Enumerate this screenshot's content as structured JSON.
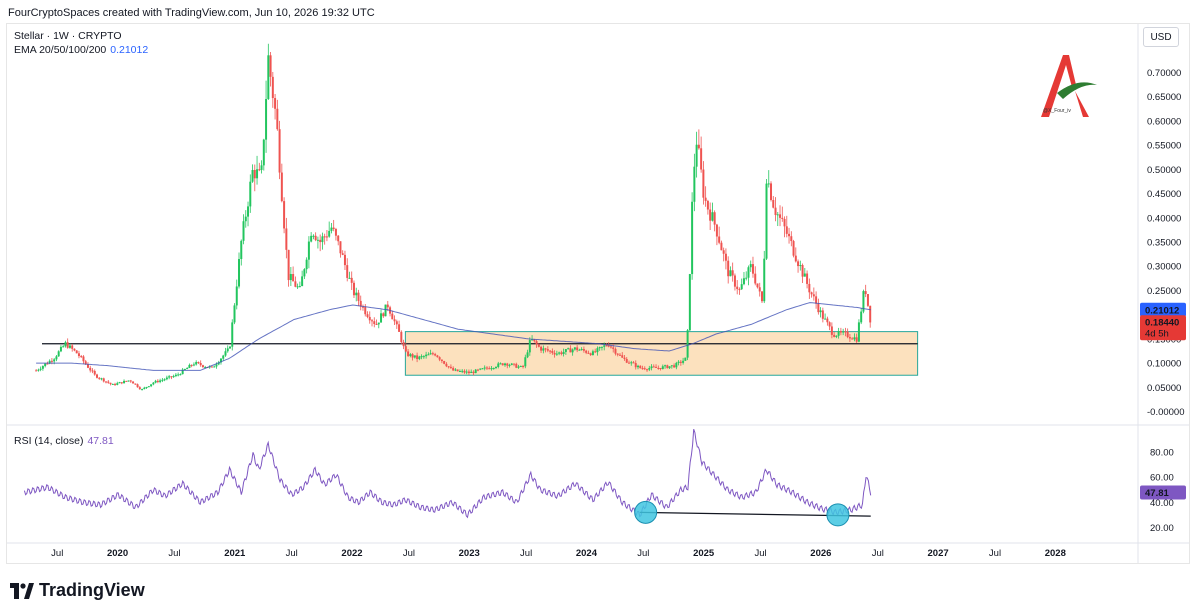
{
  "header": {
    "text": "FourCryptoSpaces created with TradingView.com, Jun 10, 2026 19:32 UTC"
  },
  "legend": {
    "title": "Stellar · 1W · CRYPTO",
    "ema_label": "EMA 20/50/100/200",
    "ema_value": "0.21012",
    "rsi_label": "RSI (14, close)",
    "rsi_value": "47.81"
  },
  "currency_button": "USD",
  "watermark": {
    "handle": "@X_Four_iv"
  },
  "footer": {
    "brand": "TradingView"
  },
  "price_badges": {
    "ema": "0.21012",
    "last": "0.18440",
    "countdown": "4d 5h",
    "rsi": "47.81"
  },
  "colors": {
    "up": "#26a69a",
    "up_green": "#22c55e",
    "down": "#ef5350",
    "ema": "#3f51b5",
    "rsi": "#7e57c2",
    "zone_fill": "#fbd7a8",
    "zone_border": "#26a69a",
    "circle": "#3fc5e0",
    "ema_badge": "#2962ff",
    "last_badge": "#e53935"
  },
  "chart_data": [
    {
      "type": "candlestick",
      "title": "Stellar · 1W · CRYPTO",
      "y_unit": "USD",
      "y_ticks": [
        "0.70000",
        "0.65000",
        "0.60000",
        "0.55000",
        "0.50000",
        "0.45000",
        "0.40000",
        "0.35000",
        "0.30000",
        "0.25000",
        "0.20000",
        "0.15000",
        "0.10000",
        "0.05000",
        "-0.00000"
      ],
      "ylim": [
        -0.005,
        0.74
      ],
      "x_ticks": [
        "Jul",
        "2020",
        "Jul",
        "2021",
        "Jul",
        "2022",
        "Jul",
        "2023",
        "Jul",
        "2024",
        "Jul",
        "2025",
        "Jul",
        "2026",
        "Jul",
        "2027",
        "Jul",
        "2028"
      ],
      "x_tick_bold": [
        false,
        true,
        false,
        true,
        false,
        true,
        false,
        true,
        false,
        true,
        false,
        true,
        false,
        true,
        false,
        true,
        false,
        true
      ],
      "price_path": [
        [
          2019.3,
          0.085
        ],
        [
          2019.45,
          0.11
        ],
        [
          2019.55,
          0.14
        ],
        [
          2019.65,
          0.12
        ],
        [
          2019.8,
          0.075
        ],
        [
          2019.95,
          0.055
        ],
        [
          2020.1,
          0.065
        ],
        [
          2020.2,
          0.045
        ],
        [
          2020.3,
          0.06
        ],
        [
          2020.5,
          0.075
        ],
        [
          2020.65,
          0.1
        ],
        [
          2020.8,
          0.09
        ],
        [
          2020.95,
          0.13
        ],
        [
          2021.05,
          0.35
        ],
        [
          2021.15,
          0.5
        ],
        [
          2021.22,
          0.48
        ],
        [
          2021.28,
          0.73
        ],
        [
          2021.35,
          0.6
        ],
        [
          2021.45,
          0.28
        ],
        [
          2021.55,
          0.25
        ],
        [
          2021.65,
          0.38
        ],
        [
          2021.72,
          0.35
        ],
        [
          2021.82,
          0.38
        ],
        [
          2021.9,
          0.33
        ],
        [
          2022.0,
          0.25
        ],
        [
          2022.1,
          0.21
        ],
        [
          2022.2,
          0.18
        ],
        [
          2022.3,
          0.22
        ],
        [
          2022.4,
          0.16
        ],
        [
          2022.45,
          0.12
        ],
        [
          2022.55,
          0.11
        ],
        [
          2022.7,
          0.12
        ],
        [
          2022.85,
          0.085
        ],
        [
          2023.0,
          0.08
        ],
        [
          2023.15,
          0.09
        ],
        [
          2023.3,
          0.1
        ],
        [
          2023.45,
          0.09
        ],
        [
          2023.52,
          0.15
        ],
        [
          2023.6,
          0.13
        ],
        [
          2023.75,
          0.12
        ],
        [
          2023.9,
          0.13
        ],
        [
          2024.05,
          0.12
        ],
        [
          2024.18,
          0.14
        ],
        [
          2024.3,
          0.11
        ],
        [
          2024.45,
          0.09
        ],
        [
          2024.6,
          0.09
        ],
        [
          2024.75,
          0.095
        ],
        [
          2024.85,
          0.11
        ],
        [
          2024.9,
          0.45
        ],
        [
          2024.93,
          0.57
        ],
        [
          2025.0,
          0.44
        ],
        [
          2025.1,
          0.38
        ],
        [
          2025.2,
          0.29
        ],
        [
          2025.3,
          0.25
        ],
        [
          2025.4,
          0.3
        ],
        [
          2025.5,
          0.22
        ],
        [
          2025.53,
          0.49
        ],
        [
          2025.6,
          0.42
        ],
        [
          2025.7,
          0.37
        ],
        [
          2025.8,
          0.31
        ],
        [
          2025.9,
          0.25
        ],
        [
          2026.0,
          0.2
        ],
        [
          2026.1,
          0.16
        ],
        [
          2026.2,
          0.16
        ],
        [
          2026.3,
          0.15
        ],
        [
          2026.37,
          0.26
        ],
        [
          2026.42,
          0.184
        ]
      ],
      "ema_path": [
        [
          2019.3,
          0.1
        ],
        [
          2019.6,
          0.1
        ],
        [
          2019.9,
          0.095
        ],
        [
          2020.3,
          0.085
        ],
        [
          2020.7,
          0.085
        ],
        [
          2020.95,
          0.11
        ],
        [
          2021.2,
          0.15
        ],
        [
          2021.5,
          0.19
        ],
        [
          2021.8,
          0.21
        ],
        [
          2022.0,
          0.22
        ],
        [
          2022.3,
          0.21
        ],
        [
          2022.6,
          0.19
        ],
        [
          2022.9,
          0.17
        ],
        [
          2023.2,
          0.16
        ],
        [
          2023.5,
          0.15
        ],
        [
          2023.8,
          0.145
        ],
        [
          2024.1,
          0.14
        ],
        [
          2024.4,
          0.13
        ],
        [
          2024.7,
          0.125
        ],
        [
          2024.9,
          0.14
        ],
        [
          2025.1,
          0.16
        ],
        [
          2025.4,
          0.18
        ],
        [
          2025.7,
          0.21
        ],
        [
          2025.9,
          0.225
        ],
        [
          2026.1,
          0.22
        ],
        [
          2026.3,
          0.215
        ],
        [
          2026.42,
          0.21
        ]
      ],
      "horizontal_line": {
        "y": 0.14,
        "x_start": 2019.35,
        "x_end": 2026.82
      },
      "zone": {
        "y_low": 0.075,
        "y_high": 0.165,
        "x_start": 2022.45,
        "x_end": 2026.82
      }
    },
    {
      "type": "line",
      "title": "RSI (14, close)",
      "y_ticks": [
        "80.00",
        "60.00",
        "40.00",
        "20.00"
      ],
      "ylim": [
        10,
        100
      ],
      "rsi_path": [
        [
          2019.2,
          48
        ],
        [
          2019.4,
          52
        ],
        [
          2019.55,
          44
        ],
        [
          2019.7,
          40
        ],
        [
          2019.85,
          38
        ],
        [
          2020.0,
          46
        ],
        [
          2020.15,
          36
        ],
        [
          2020.3,
          50
        ],
        [
          2020.4,
          45
        ],
        [
          2020.55,
          55
        ],
        [
          2020.7,
          40
        ],
        [
          2020.85,
          48
        ],
        [
          2020.95,
          66
        ],
        [
          2021.05,
          48
        ],
        [
          2021.15,
          78
        ],
        [
          2021.2,
          66
        ],
        [
          2021.28,
          86
        ],
        [
          2021.38,
          58
        ],
        [
          2021.48,
          46
        ],
        [
          2021.58,
          52
        ],
        [
          2021.68,
          66
        ],
        [
          2021.76,
          54
        ],
        [
          2021.86,
          62
        ],
        [
          2021.96,
          44
        ],
        [
          2022.05,
          40
        ],
        [
          2022.15,
          48
        ],
        [
          2022.25,
          40
        ],
        [
          2022.35,
          38
        ],
        [
          2022.45,
          42
        ],
        [
          2022.58,
          36
        ],
        [
          2022.7,
          34
        ],
        [
          2022.85,
          40
        ],
        [
          2022.98,
          30
        ],
        [
          2023.12,
          44
        ],
        [
          2023.28,
          48
        ],
        [
          2023.4,
          40
        ],
        [
          2023.52,
          62
        ],
        [
          2023.6,
          50
        ],
        [
          2023.75,
          45
        ],
        [
          2023.9,
          55
        ],
        [
          2024.05,
          42
        ],
        [
          2024.18,
          56
        ],
        [
          2024.3,
          40
        ],
        [
          2024.45,
          30
        ],
        [
          2024.55,
          46
        ],
        [
          2024.68,
          36
        ],
        [
          2024.8,
          50
        ],
        [
          2024.86,
          52
        ],
        [
          2024.91,
          97
        ],
        [
          2024.98,
          72
        ],
        [
          2025.1,
          60
        ],
        [
          2025.2,
          50
        ],
        [
          2025.32,
          44
        ],
        [
          2025.44,
          48
        ],
        [
          2025.53,
          66
        ],
        [
          2025.62,
          54
        ],
        [
          2025.75,
          48
        ],
        [
          2025.88,
          40
        ],
        [
          2026.0,
          35
        ],
        [
          2026.12,
          32
        ],
        [
          2026.25,
          34
        ],
        [
          2026.35,
          38
        ],
        [
          2026.38,
          62
        ],
        [
          2026.42,
          47.81
        ]
      ],
      "support_line": {
        "x_start": 2024.45,
        "y_start": 32,
        "x_end": 2026.42,
        "y_end": 29
      },
      "circles": [
        [
          2024.5,
          32
        ],
        [
          2026.14,
          30
        ]
      ]
    }
  ]
}
